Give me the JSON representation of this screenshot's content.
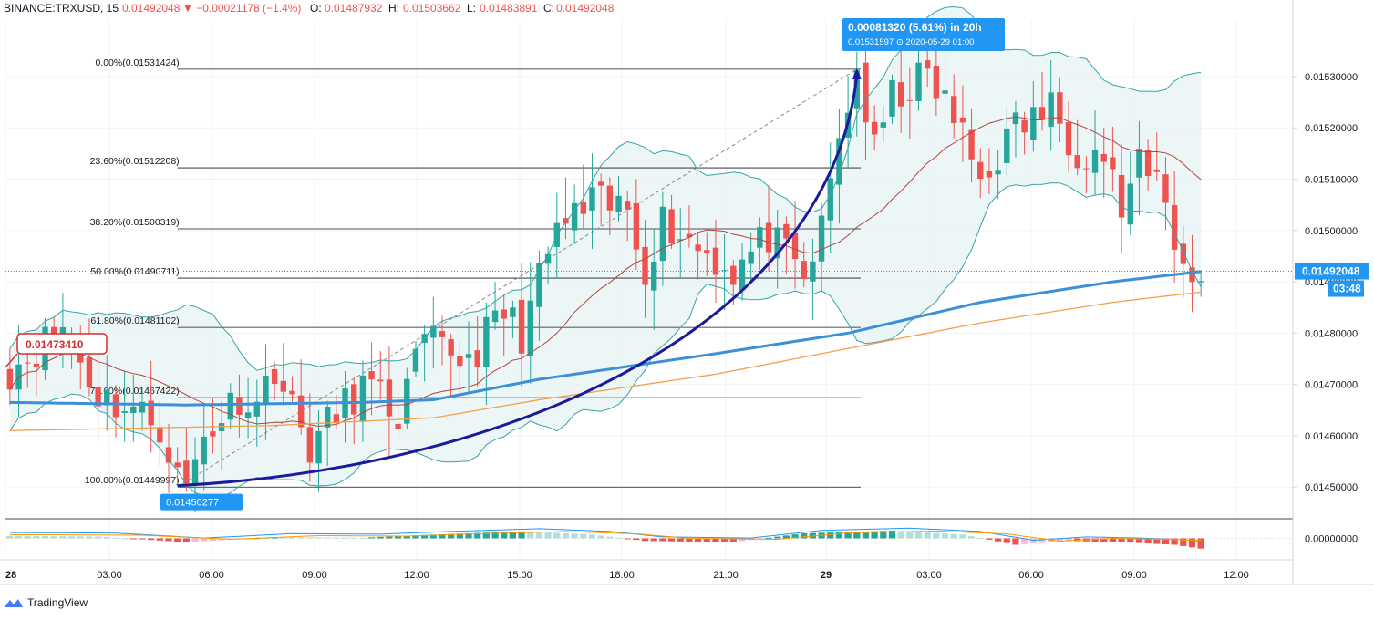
{
  "header": {
    "symbol": "BINANCE:TRXUSD, 15",
    "last": "0.01492048",
    "change": "▼ −0.00021178 (−1.4%)",
    "o_label": "O:",
    "o": "0.01487932",
    "h_label": "H:",
    "h": "0.01503662",
    "l_label": "L:",
    "l": "0.01483891",
    "c_label": "C:",
    "c": "0.01492048"
  },
  "colors": {
    "up": "#26a69a",
    "down": "#ef5350",
    "ma_fast": "#3d8fd6",
    "ma_slow": "#f3a04d",
    "bb": "#38a3a5",
    "bb_fill": "#e8f4f4",
    "arrow": "#1a1a9c",
    "fib": "#131722",
    "price_tag": "#2196f3",
    "start_tag": "#d32f2f"
  },
  "price_axis": {
    "ticks": [
      "0.01530000",
      "0.01520000",
      "0.01510000",
      "0.01500000",
      "0.01490000",
      "0.01480000",
      "0.01470000",
      "0.01460000",
      "0.01450000"
    ],
    "current_price": "0.01492048",
    "countdown": "03:48",
    "macd_zero": "0.00000000"
  },
  "time_axis": {
    "ticks": [
      "28",
      "03:00",
      "06:00",
      "09:00",
      "12:00",
      "15:00",
      "18:00",
      "21:00",
      "29",
      "03:00",
      "06:00",
      "09:00",
      "12:00"
    ]
  },
  "fib_levels": [
    {
      "label": "0.00%(0.01531424)",
      "price": 0.01531424
    },
    {
      "label": "23.60%(0.01512208)",
      "price": 0.01512208
    },
    {
      "label": "38.20%(0.01500319)",
      "price": 0.01500319
    },
    {
      "label": "50.00%(0.01490711)",
      "price": 0.01490711
    },
    {
      "label": "61.80%(0.01481102)",
      "price": 0.01481102
    },
    {
      "label": "78.60%(0.01467422)",
      "price": 0.01467422
    },
    {
      "label": "100.00%(0.01449997)",
      "price": 0.01449997
    }
  ],
  "annotations": {
    "measure_main": "0.00081320 (5.61%) in 20h",
    "measure_sub": "0.01531597 ⊙ 2020-05-29  01:00",
    "low_tag": "0.01450277",
    "start_tag": "0.01473410"
  },
  "chart_data": {
    "type": "candlestick",
    "title": "BINANCE:TRXUSD, 15",
    "ylim": [
      0.01444,
      0.01541
    ],
    "x_ticks": [
      "28",
      "03:00",
      "06:00",
      "09:00",
      "12:00",
      "15:00",
      "18:00",
      "21:00",
      "29",
      "03:00",
      "06:00",
      "09:00",
      "12:00"
    ],
    "anchors": [
      [
        0,
        0.01473
      ],
      [
        6,
        0.01481
      ],
      [
        10,
        0.01468
      ],
      [
        14,
        0.01465
      ],
      [
        17,
        0.01462
      ],
      [
        19,
        0.01452
      ],
      [
        20,
        0.0145
      ],
      [
        22,
        0.0146
      ],
      [
        26,
        0.01468
      ],
      [
        28,
        0.01466
      ],
      [
        30,
        0.01474
      ],
      [
        32,
        0.01465
      ],
      [
        34,
        0.01458
      ],
      [
        36,
        0.01462
      ],
      [
        40,
        0.0147
      ],
      [
        44,
        0.01464
      ],
      [
        47,
        0.01478
      ],
      [
        52,
        0.01475
      ],
      [
        56,
        0.01484
      ],
      [
        58,
        0.0148
      ],
      [
        62,
        0.015
      ],
      [
        66,
        0.01505
      ],
      [
        70,
        0.01504
      ],
      [
        72,
        0.01493
      ],
      [
        74,
        0.01502
      ],
      [
        78,
        0.01497
      ],
      [
        82,
        0.01492
      ],
      [
        86,
        0.01499
      ],
      [
        90,
        0.0149
      ],
      [
        92,
        0.015
      ],
      [
        94,
        0.01518
      ],
      [
        96,
        0.01531
      ],
      [
        98,
        0.01515
      ],
      [
        100,
        0.01526
      ],
      [
        104,
        0.0153
      ],
      [
        107,
        0.01522
      ],
      [
        110,
        0.0151
      ],
      [
        114,
        0.0152
      ],
      [
        118,
        0.01524
      ],
      [
        121,
        0.01516
      ],
      [
        124,
        0.01515
      ],
      [
        126,
        0.01504
      ],
      [
        128,
        0.01512
      ],
      [
        131,
        0.01508
      ],
      [
        132,
        0.01495
      ],
      [
        134,
        0.01492
      ]
    ],
    "ma_fast_anchors": [
      [
        0,
        0.014665
      ],
      [
        20,
        0.01466
      ],
      [
        40,
        0.014665
      ],
      [
        48,
        0.01467
      ],
      [
        60,
        0.01471
      ],
      [
        80,
        0.01476
      ],
      [
        95,
        0.0148
      ],
      [
        110,
        0.01486
      ],
      [
        125,
        0.0149
      ],
      [
        135,
        0.01492
      ]
    ],
    "ma_slow_anchors": [
      [
        0,
        0.01461
      ],
      [
        30,
        0.01462
      ],
      [
        48,
        0.014635
      ],
      [
        60,
        0.01467
      ],
      [
        80,
        0.01472
      ],
      [
        95,
        0.01477
      ],
      [
        110,
        0.01482
      ],
      [
        125,
        0.01486
      ],
      [
        135,
        0.01488
      ]
    ],
    "arrow_curve": {
      "from": [
        19,
        0.01450277
      ],
      "to": [
        96,
        0.01531597
      ]
    },
    "series": [
      {
        "name": "MA fast",
        "role": "ma_fast"
      },
      {
        "name": "MA slow",
        "role": "ma_slow"
      },
      {
        "name": "Bollinger Bands",
        "role": "bb"
      }
    ],
    "macd": {
      "anchors": [
        [
          0,
          0.2
        ],
        [
          10,
          0.15
        ],
        [
          20,
          -0.3
        ],
        [
          30,
          0.1
        ],
        [
          40,
          0.05
        ],
        [
          48,
          0.3
        ],
        [
          58,
          0.55
        ],
        [
          66,
          0.3
        ],
        [
          72,
          -0.2
        ],
        [
          82,
          -0.3
        ],
        [
          90,
          0.4
        ],
        [
          100,
          0.6
        ],
        [
          108,
          0.3
        ],
        [
          114,
          -0.5
        ],
        [
          120,
          -0.2
        ],
        [
          126,
          -0.3
        ],
        [
          132,
          -0.5
        ],
        [
          135,
          -0.8
        ]
      ]
    },
    "legend": "none",
    "grid": true
  }
}
